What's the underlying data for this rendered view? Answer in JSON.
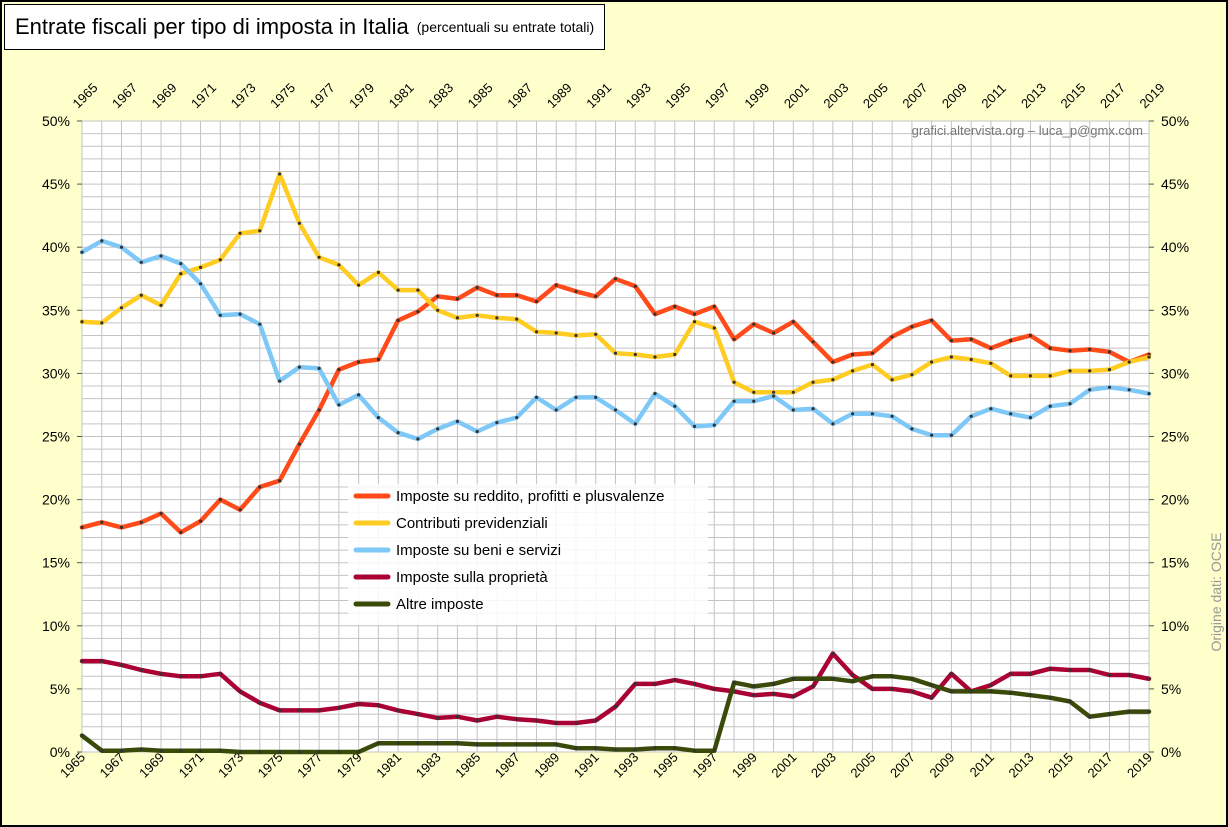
{
  "title": "Entrate fiscali per tipo di imposta in Italia",
  "subtitle": "(percentuali su entrate totali)",
  "watermark": "grafici.altervista.org – luca_p@gmx.com",
  "source": "Origine dati: OCSE",
  "chart_data": {
    "type": "line",
    "x": [
      1965,
      1966,
      1967,
      1968,
      1969,
      1970,
      1971,
      1972,
      1973,
      1974,
      1975,
      1976,
      1977,
      1978,
      1979,
      1980,
      1981,
      1982,
      1983,
      1984,
      1985,
      1986,
      1987,
      1988,
      1989,
      1990,
      1991,
      1992,
      1993,
      1994,
      1995,
      1996,
      1997,
      1998,
      1999,
      2000,
      2001,
      2002,
      2003,
      2004,
      2005,
      2006,
      2007,
      2008,
      2009,
      2010,
      2011,
      2012,
      2013,
      2014,
      2015,
      2016,
      2017,
      2018,
      2019
    ],
    "x_tick_labels": [
      "1965",
      "1967",
      "1969",
      "1971",
      "1973",
      "1975",
      "1977",
      "1979",
      "1981",
      "1983",
      "1985",
      "1987",
      "1989",
      "1991",
      "1993",
      "1995",
      "1997",
      "1999",
      "2001",
      "2003",
      "2005",
      "2007",
      "2009",
      "2011",
      "2013",
      "2015",
      "2017",
      "2019"
    ],
    "y_tick_labels": [
      "0%",
      "5%",
      "10%",
      "15%",
      "20%",
      "25%",
      "30%",
      "35%",
      "40%",
      "45%",
      "50%"
    ],
    "ylim": [
      0,
      50
    ],
    "y_unit": "%",
    "grid": true,
    "legend_position": "center",
    "series": [
      {
        "name": "Imposte su reddito, profitti e plusvalenze",
        "color": "#ff4a1a",
        "values": [
          17.8,
          18.2,
          17.8,
          18.2,
          18.9,
          17.4,
          18.3,
          20.0,
          19.2,
          21.0,
          21.5,
          24.4,
          27.1,
          30.3,
          30.9,
          31.1,
          34.2,
          34.9,
          36.1,
          35.9,
          36.8,
          36.2,
          36.2,
          35.7,
          37.0,
          36.5,
          36.1,
          37.5,
          36.9,
          34.7,
          35.3,
          34.7,
          35.3,
          32.7,
          33.9,
          33.2,
          34.1,
          32.5,
          30.9,
          31.5,
          31.6,
          32.9,
          33.7,
          34.2,
          32.6,
          32.7,
          32.0,
          32.6,
          33.0,
          32.0,
          31.8,
          31.9,
          31.7,
          30.9,
          31.5
        ]
      },
      {
        "name": "Contributi previdenziali",
        "color": "#ffcc22",
        "values": [
          34.1,
          34.0,
          35.2,
          36.2,
          35.4,
          37.9,
          38.4,
          39.0,
          41.1,
          41.3,
          45.8,
          41.9,
          39.2,
          38.6,
          37.0,
          38.0,
          36.6,
          36.6,
          35.0,
          34.4,
          34.6,
          34.4,
          34.3,
          33.3,
          33.2,
          33.0,
          33.1,
          31.6,
          31.5,
          31.3,
          31.5,
          34.1,
          33.6,
          29.3,
          28.5,
          28.5,
          28.5,
          29.3,
          29.5,
          30.2,
          30.7,
          29.5,
          29.9,
          30.9,
          31.3,
          31.1,
          30.8,
          29.8,
          29.8,
          29.8,
          30.2,
          30.2,
          30.3,
          30.9,
          31.3
        ]
      },
      {
        "name": "Imposte su beni e servizi",
        "color": "#7ec8f7",
        "values": [
          39.6,
          40.5,
          40.0,
          38.8,
          39.3,
          38.7,
          37.1,
          34.6,
          34.7,
          33.9,
          29.4,
          30.5,
          30.4,
          27.5,
          28.3,
          26.5,
          25.3,
          24.8,
          25.6,
          26.2,
          25.4,
          26.1,
          26.5,
          28.1,
          27.1,
          28.1,
          28.1,
          27.1,
          26.0,
          28.4,
          27.4,
          25.8,
          25.9,
          27.8,
          27.8,
          28.2,
          27.1,
          27.2,
          26.0,
          26.8,
          26.8,
          26.6,
          25.6,
          25.1,
          25.1,
          26.6,
          27.2,
          26.8,
          26.5,
          27.4,
          27.6,
          28.7,
          28.9,
          28.7,
          28.4
        ]
      },
      {
        "name": "Imposte sulla proprietà",
        "color": "#aa0033",
        "values": [
          7.2,
          7.2,
          6.9,
          6.5,
          6.2,
          6.0,
          6.0,
          6.2,
          4.8,
          3.9,
          3.3,
          3.3,
          3.3,
          3.5,
          3.8,
          3.7,
          3.3,
          3.0,
          2.7,
          2.8,
          2.5,
          2.8,
          2.6,
          2.5,
          2.3,
          2.3,
          2.5,
          3.6,
          5.4,
          5.4,
          5.7,
          5.4,
          5.0,
          4.8,
          4.5,
          4.6,
          4.4,
          5.2,
          7.8,
          6.1,
          5.0,
          5.0,
          4.8,
          4.3,
          6.2,
          4.8,
          5.3,
          6.2,
          6.2,
          6.6,
          6.5,
          6.5,
          6.1,
          6.1,
          5.8
        ]
      },
      {
        "name": "Altre imposte",
        "color": "#3a4a08",
        "values": [
          1.3,
          0.1,
          0.1,
          0.2,
          0.1,
          0.1,
          0.1,
          0.1,
          0.0,
          0.0,
          0.0,
          0.0,
          0.0,
          0.0,
          0.0,
          0.7,
          0.7,
          0.7,
          0.7,
          0.7,
          0.6,
          0.6,
          0.6,
          0.6,
          0.6,
          0.3,
          0.3,
          0.2,
          0.2,
          0.3,
          0.3,
          0.1,
          0.1,
          5.5,
          5.2,
          5.4,
          5.8,
          5.8,
          5.8,
          5.6,
          6.0,
          6.0,
          5.8,
          5.3,
          4.8,
          4.8,
          4.8,
          4.7,
          4.5,
          4.3,
          4.0,
          2.8,
          3.0,
          3.2,
          3.2
        ]
      }
    ]
  }
}
